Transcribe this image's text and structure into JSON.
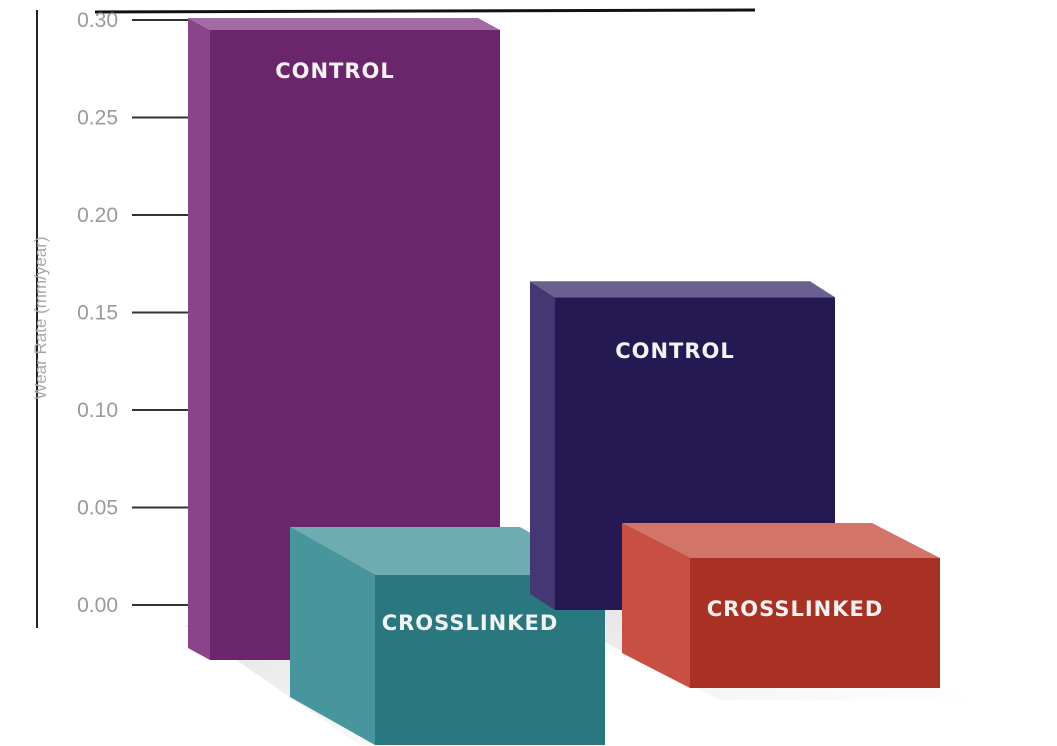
{
  "chart_data": {
    "type": "bar",
    "ylabel": "Wear Rate (mm/year)",
    "ylim": [
      0,
      0.3
    ],
    "yticks": [
      "0.00",
      "0.05",
      "0.10",
      "0.15",
      "0.20",
      "0.25",
      "0.30"
    ],
    "grid": false,
    "legend": "none",
    "groups": [
      {
        "bars": [
          {
            "label": "CONTROL",
            "value": 0.3,
            "color": "#7a2a7a"
          },
          {
            "label": "CROSSLINKED",
            "value": 0.05,
            "color": "#2f8890"
          }
        ]
      },
      {
        "bars": [
          {
            "label": "CONTROL",
            "value": 0.165,
            "color": "#2a1c60"
          },
          {
            "label": "CROSSLINKED",
            "value": 0.05,
            "color": "#c03828"
          }
        ]
      }
    ]
  }
}
